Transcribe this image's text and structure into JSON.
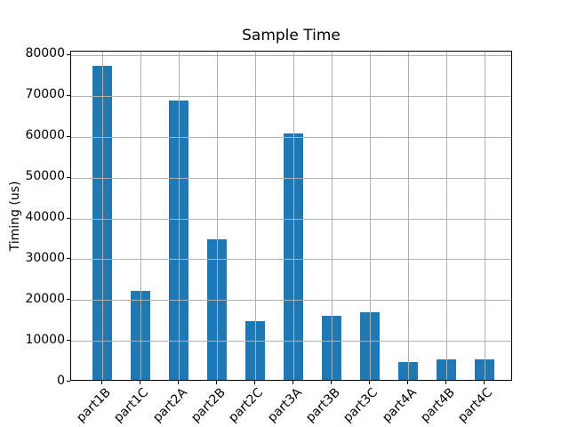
{
  "figure": {
    "background": "#ffffff",
    "bar_color": "#1f77b4",
    "grid_color": "#b0b0b0",
    "spine_color": "#000000",
    "text_color": "#000000"
  },
  "chart_data": {
    "type": "bar",
    "title": "Sample Time",
    "xlabel": "",
    "ylabel": "Timing (us)",
    "categories": [
      "part1B",
      "part1C",
      "part2A",
      "part2B",
      "part2C",
      "part3A",
      "part3B",
      "part3C",
      "part4A",
      "part4B",
      "part4C"
    ],
    "values": [
      77000,
      21800,
      68400,
      34400,
      14400,
      60300,
      15700,
      16600,
      4300,
      5100,
      5100
    ],
    "ylim": [
      0,
      80850
    ],
    "yticks": [
      0,
      10000,
      20000,
      30000,
      40000,
      50000,
      60000,
      70000,
      80000
    ],
    "grid": true,
    "grid_on_top_of_bars": true,
    "x_tick_label_rotation_deg": 45,
    "legend": null
  }
}
